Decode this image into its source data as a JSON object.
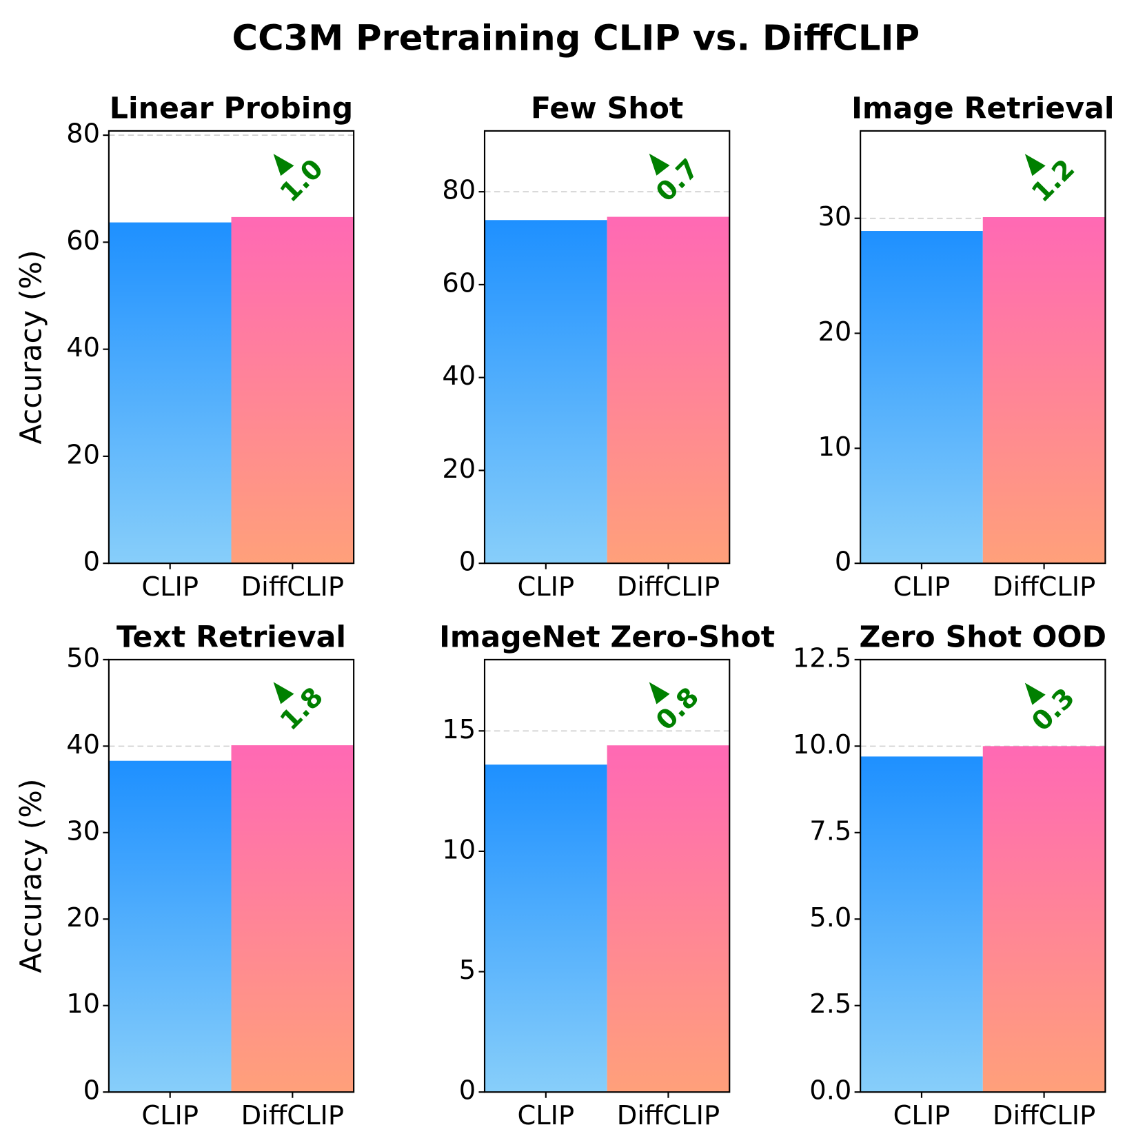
{
  "title": "CC3M Pretraining CLIP vs. DiffCLIP",
  "chart_data": [
    {
      "type": "bar",
      "title": "Linear Probing",
      "ylabel": "Accuracy (%)",
      "categories": [
        "CLIP",
        "DiffCLIP"
      ],
      "values": [
        63.7,
        64.7
      ],
      "colors": [
        "blue",
        "pink"
      ],
      "annotation": "1.0",
      "ylim": [
        0,
        80.8
      ],
      "yticks": [
        0,
        20,
        40,
        60,
        80
      ],
      "grid": true
    },
    {
      "type": "bar",
      "title": "Few Shot",
      "categories": [
        "CLIP",
        "DiffCLIP"
      ],
      "values": [
        73.9,
        74.6
      ],
      "colors": [
        "blue",
        "pink"
      ],
      "annotation": "0.7",
      "ylim": [
        0,
        93.1
      ],
      "yticks": [
        0,
        20,
        40,
        60,
        80
      ],
      "grid": true
    },
    {
      "type": "bar",
      "title": "Image Retrieval",
      "categories": [
        "CLIP",
        "DiffCLIP"
      ],
      "values": [
        28.9,
        30.1
      ],
      "colors": [
        "blue",
        "pink"
      ],
      "annotation": "1.2",
      "ylim": [
        0,
        37.6
      ],
      "yticks": [
        0,
        10,
        20,
        30
      ],
      "grid": true
    },
    {
      "type": "bar",
      "title": "Text Retrieval",
      "ylabel": "Accuracy (%)",
      "categories": [
        "CLIP",
        "DiffCLIP"
      ],
      "values": [
        38.3,
        40.1
      ],
      "colors": [
        "blue",
        "pink"
      ],
      "annotation": "1.8",
      "ylim": [
        0,
        50
      ],
      "yticks": [
        0,
        10,
        20,
        30,
        40,
        50
      ],
      "grid": true
    },
    {
      "type": "bar",
      "title": "ImageNet Zero-Shot",
      "categories": [
        "CLIP",
        "DiffCLIP"
      ],
      "values": [
        13.6,
        14.4
      ],
      "colors": [
        "blue",
        "pink"
      ],
      "annotation": "0.8",
      "ylim": [
        0,
        17.96
      ],
      "yticks": [
        0,
        5,
        10,
        15
      ],
      "grid": true
    },
    {
      "type": "bar",
      "title": "Zero Shot OOD",
      "categories": [
        "CLIP",
        "DiffCLIP"
      ],
      "values": [
        9.7,
        10.0
      ],
      "colors": [
        "blue",
        "pink"
      ],
      "annotation": "0.3",
      "ylim": [
        0,
        12.5
      ],
      "yticks": [
        {
          "value": 0,
          "label": "0.0"
        },
        2.5,
        {
          "value": 5,
          "label": "5.0"
        },
        7.5,
        {
          "value": 10,
          "label": "10.0"
        },
        12.5
      ],
      "grid": true
    }
  ]
}
